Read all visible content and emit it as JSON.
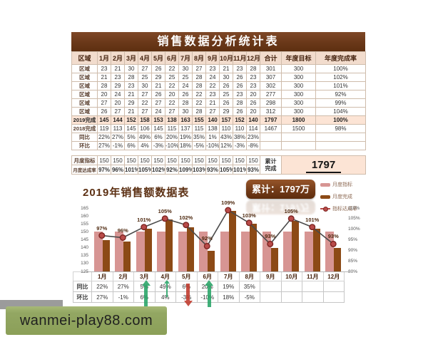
{
  "page": {
    "title": "销售数据分析统计表"
  },
  "main_table": {
    "columns": [
      "区域",
      "1月",
      "2月",
      "3月",
      "4月",
      "5月",
      "6月",
      "7月",
      "8月",
      "9月",
      "10月",
      "11月",
      "12月",
      "合计",
      "年度目标",
      "年度完成率"
    ],
    "region_rows": [
      {
        "label": "区域",
        "values": [
          "23",
          "21",
          "30",
          "27",
          "26",
          "22",
          "30",
          "27",
          "23",
          "21",
          "23",
          "28"
        ],
        "total": "301",
        "target": "300",
        "rate": "100%"
      },
      {
        "label": "区域",
        "values": [
          "21",
          "23",
          "28",
          "25",
          "29",
          "25",
          "25",
          "28",
          "24",
          "30",
          "26",
          "23"
        ],
        "total": "307",
        "target": "300",
        "rate": "102%"
      },
      {
        "label": "区域",
        "values": [
          "28",
          "29",
          "23",
          "30",
          "21",
          "22",
          "24",
          "28",
          "22",
          "26",
          "26",
          "23"
        ],
        "total": "302",
        "target": "300",
        "rate": "101%"
      },
      {
        "label": "区域",
        "values": [
          "20",
          "24",
          "21",
          "27",
          "26",
          "20",
          "26",
          "22",
          "23",
          "25",
          "23",
          "20"
        ],
        "total": "277",
        "target": "300",
        "rate": "92%"
      },
      {
        "label": "区域",
        "values": [
          "27",
          "20",
          "29",
          "22",
          "27",
          "22",
          "28",
          "22",
          "21",
          "26",
          "28",
          "26"
        ],
        "total": "298",
        "target": "300",
        "rate": "99%"
      },
      {
        "label": "区域",
        "values": [
          "26",
          "27",
          "21",
          "27",
          "24",
          "27",
          "30",
          "28",
          "27",
          "29",
          "26",
          "20"
        ],
        "total": "312",
        "target": "300",
        "rate": "104%"
      }
    ],
    "summary_rows": [
      {
        "label": "2019完成",
        "values": [
          "145",
          "144",
          "152",
          "158",
          "153",
          "138",
          "163",
          "155",
          "140",
          "157",
          "152",
          "140"
        ],
        "total": "1797",
        "target": "1800",
        "rate": "100%",
        "highlight": true
      },
      {
        "label": "2018完成",
        "values": [
          "119",
          "113",
          "145",
          "106",
          "145",
          "115",
          "137",
          "115",
          "138",
          "110",
          "110",
          "114"
        ],
        "total": "1467",
        "target": "1500",
        "rate": "98%",
        "highlight": false
      },
      {
        "label": "同比",
        "values": [
          "22%",
          "27%",
          "5%",
          "49%",
          "6%",
          "20%",
          "19%",
          "35%",
          "1%",
          "43%",
          "38%",
          "23%"
        ],
        "total": "",
        "target": "",
        "rate": "",
        "highlight": false
      },
      {
        "label": "环比",
        "values": [
          "27%",
          "-1%",
          "6%",
          "4%",
          "-3%",
          "-10%",
          "18%",
          "-5%",
          "-10%",
          "12%",
          "-3%",
          "-8%"
        ],
        "total": "",
        "target": "",
        "rate": "",
        "highlight": false
      }
    ],
    "monthly_target_row": {
      "label": "月度指标",
      "values": [
        "150",
        "150",
        "150",
        "150",
        "150",
        "150",
        "150",
        "150",
        "150",
        "150",
        "150",
        "150"
      ]
    },
    "monthly_rate_row": {
      "label": "月度达成率",
      "values": [
        "97%",
        "96%",
        "101%",
        "105%",
        "102%",
        "92%",
        "109%",
        "103%",
        "93%",
        "105%",
        "101%",
        "93%"
      ]
    },
    "cumulative_label_line1": "累计",
    "cumulative_label_line2": "完成",
    "cumulative_value": "1797"
  },
  "chart_data": {
    "type": "bar",
    "title": "2019年销售额数据表",
    "annotation": "累计：1797万",
    "categories": [
      "1月",
      "2月",
      "3月",
      "4月",
      "5月",
      "6月",
      "7月",
      "8月",
      "9月",
      "10月",
      "11月",
      "12月"
    ],
    "series": [
      {
        "name": "月度指标",
        "kind": "bar",
        "color": "#d79593",
        "values": [
          150,
          150,
          150,
          150,
          150,
          150,
          150,
          150,
          150,
          150,
          150,
          150
        ]
      },
      {
        "name": "月度完成",
        "kind": "bar",
        "color": "#8c4a16",
        "values": [
          145,
          144,
          152,
          158,
          153,
          138,
          163,
          155,
          140,
          157,
          152,
          140
        ]
      },
      {
        "name": "指标达成率",
        "kind": "line",
        "axis": "right",
        "color": "#b94b49",
        "line_color": "#4a4a4a",
        "values": [
          97,
          96,
          101,
          105,
          102,
          92,
          109,
          103,
          93,
          105,
          101,
          93
        ],
        "labels": [
          "97%",
          "96%",
          "101%",
          "105%",
          "102%",
          "92%",
          "109%",
          "103%",
          "93%",
          "105%",
          "101%",
          "93%"
        ]
      }
    ],
    "left_axis": {
      "min": 125,
      "max": 165,
      "step": 5,
      "ticks": [
        "165",
        "160",
        "155",
        "150",
        "145",
        "140",
        "135",
        "130",
        "125"
      ]
    },
    "right_axis": {
      "min": 80,
      "max": 110,
      "step": 5,
      "ticks": [
        "110%",
        "105%",
        "100%",
        "95%",
        "90%",
        "85%",
        "80%"
      ]
    },
    "legend_position": "right",
    "grid": false
  },
  "bottom_table": {
    "rows": [
      {
        "label": "同比",
        "values": [
          "22%",
          "27%",
          "5%",
          "49%",
          "6%",
          "20%",
          "19%",
          "35%",
          "",
          "",
          "",
          ""
        ]
      },
      {
        "label": "环比",
        "values": [
          "27%",
          "-1%",
          "6%",
          "4%",
          "-3%",
          "-10%",
          "18%",
          "-5%",
          "",
          "",
          "",
          ""
        ]
      }
    ],
    "arrows": [
      {
        "col": 3,
        "dir": "up",
        "size": "tall"
      },
      {
        "col": 4,
        "dir": "up",
        "size": "thin"
      },
      {
        "col": 5,
        "dir": "down",
        "size": "normal"
      },
      {
        "col": 6,
        "dir": "up",
        "size": "tall"
      }
    ]
  },
  "watermark": {
    "text": "wanmei-play88.com"
  },
  "colors": {
    "title_bar": "#6a3819",
    "header_bg": "#f2dccd",
    "highlight_bg": "#fce4d5",
    "bar_target": "#d79593",
    "bar_actual": "#8c4a16",
    "rate_line": "#b94b49",
    "arrow_up": "#27a567",
    "arrow_down": "#c0392b",
    "watermark_bg": "#8b9f58"
  }
}
